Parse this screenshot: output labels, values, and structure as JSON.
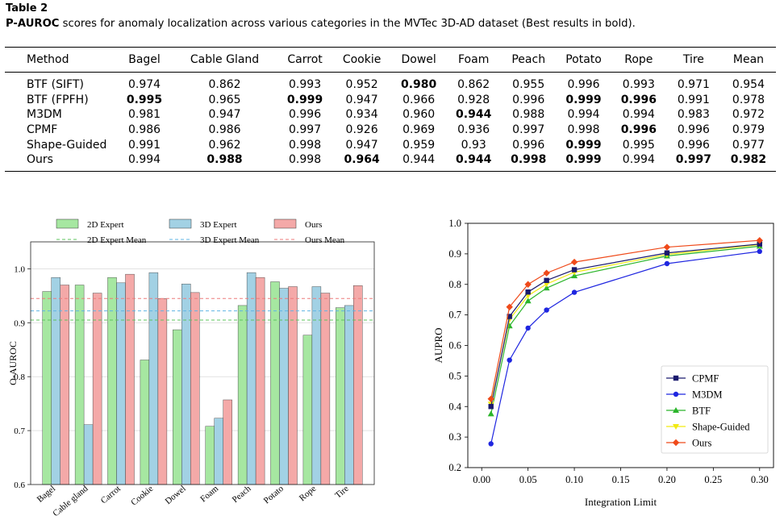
{
  "caption": {
    "label": "Table 2",
    "bold_term": "P-AUROC",
    "text": " scores for anomaly localization across various categories in the MVTec 3D-AD dataset (Best results in bold)."
  },
  "table": {
    "columns": [
      "Method",
      "Bagel",
      "Cable Gland",
      "Carrot",
      "Cookie",
      "Dowel",
      "Foam",
      "Peach",
      "Potato",
      "Rope",
      "Tire",
      "Mean"
    ],
    "rows": [
      {
        "method": "BTF (SIFT)",
        "values": [
          "0.974",
          "0.862",
          "0.993",
          "0.952",
          "0.980",
          "0.862",
          "0.955",
          "0.996",
          "0.993",
          "0.971",
          "0.954"
        ],
        "bold": [
          4
        ]
      },
      {
        "method": "BTF (FPFH)",
        "values": [
          "0.995",
          "0.965",
          "0.999",
          "0.947",
          "0.966",
          "0.928",
          "0.996",
          "0.999",
          "0.996",
          "0.991",
          "0.978"
        ],
        "bold": [
          0,
          2,
          7,
          8
        ]
      },
      {
        "method": "M3DM",
        "values": [
          "0.981",
          "0.947",
          "0.996",
          "0.934",
          "0.960",
          "0.944",
          "0.988",
          "0.994",
          "0.994",
          "0.983",
          "0.972"
        ],
        "bold": [
          5
        ]
      },
      {
        "method": "CPMF",
        "values": [
          "0.986",
          "0.986",
          "0.997",
          "0.926",
          "0.969",
          "0.936",
          "0.997",
          "0.998",
          "0.996",
          "0.996",
          "0.979"
        ],
        "bold": [
          8
        ]
      },
      {
        "method": "Shape-Guided",
        "values": [
          "0.991",
          "0.962",
          "0.998",
          "0.947",
          "0.959",
          "0.93",
          "0.996",
          "0.999",
          "0.995",
          "0.996",
          "0.977"
        ],
        "bold": [
          7
        ]
      },
      {
        "method": "Ours",
        "values": [
          "0.994",
          "0.988",
          "0.998",
          "0.964",
          "0.944",
          "0.944",
          "0.998",
          "0.999",
          "0.994",
          "0.997",
          "0.982"
        ],
        "bold": [
          1,
          3,
          5,
          6,
          7,
          9,
          10
        ]
      }
    ]
  },
  "chart_data": [
    {
      "type": "bar",
      "ylabel": "O-AUROC",
      "ylim": [
        0.6,
        1.05
      ],
      "yticks": [
        "0.6",
        "0.7",
        "0.8",
        "0.9",
        "1.0"
      ],
      "categories": [
        "Bagel",
        "Cable gland",
        "Carrot",
        "Cookie",
        "Dowel",
        "Foam",
        "Peach",
        "Potato",
        "Rope",
        "Tire"
      ],
      "series": [
        {
          "name": "2D Expert",
          "color": "#a6e7a1",
          "edge": "#333333",
          "values": [
            0.958,
            0.97,
            0.984,
            0.831,
            0.887,
            0.708,
            0.932,
            0.976,
            0.877,
            0.928
          ]
        },
        {
          "name": "3D Expert",
          "color": "#a2d1e4",
          "edge": "#333333",
          "values": [
            0.984,
            0.711,
            0.974,
            0.993,
            0.972,
            0.723,
            0.993,
            0.964,
            0.967,
            0.932
          ]
        },
        {
          "name": "Ours",
          "color": "#f4a9a8",
          "edge": "#333333",
          "values": [
            0.97,
            0.955,
            0.99,
            0.945,
            0.956,
            0.757,
            0.984,
            0.967,
            0.955,
            0.969
          ]
        }
      ],
      "mean_lines": [
        {
          "name": "2D Expert Mean",
          "color": "#5ec45e",
          "value": 0.905
        },
        {
          "name": "3D Expert Mean",
          "color": "#5fb4e4",
          "value": 0.922
        },
        {
          "name": "Ours Mean",
          "color": "#ee7b7b",
          "value": 0.945
        }
      ],
      "legend_position": "top",
      "grid": "horizontal"
    },
    {
      "type": "line",
      "xlabel": "Integration Limit",
      "ylabel": "AUPRO",
      "xlim": [
        -0.015,
        0.315
      ],
      "ylim": [
        0.2,
        1.0
      ],
      "xticks": [
        "0.00",
        "0.05",
        "0.10",
        "0.15",
        "0.20",
        "0.25",
        "0.30"
      ],
      "yticks": [
        "0.2",
        "0.3",
        "0.4",
        "0.5",
        "0.6",
        "0.7",
        "0.8",
        "0.9",
        "1.0"
      ],
      "x": [
        0.01,
        0.03,
        0.05,
        0.07,
        0.1,
        0.2,
        0.3
      ],
      "series": [
        {
          "name": "CPMF",
          "color": "#1a1a6e",
          "marker": "square",
          "values": [
            0.4,
            0.695,
            0.775,
            0.813,
            0.848,
            0.903,
            0.932
          ]
        },
        {
          "name": "M3DM",
          "color": "#1f26e0",
          "marker": "circle",
          "values": [
            0.278,
            0.552,
            0.657,
            0.716,
            0.774,
            0.868,
            0.908
          ]
        },
        {
          "name": "BTF",
          "color": "#2bb52b",
          "marker": "triangle-up",
          "values": [
            0.376,
            0.664,
            0.746,
            0.788,
            0.828,
            0.893,
            0.925
          ]
        },
        {
          "name": "Shape-Guided",
          "color": "#f2ea12",
          "marker": "triangle-down",
          "values": [
            0.408,
            0.685,
            0.763,
            0.801,
            0.84,
            0.898,
            0.93
          ]
        },
        {
          "name": "Ours",
          "color": "#ef4a1a",
          "marker": "diamond",
          "values": [
            0.425,
            0.726,
            0.8,
            0.837,
            0.873,
            0.922,
            0.944
          ]
        }
      ],
      "legend_position": "lower right",
      "grid": "off"
    }
  ]
}
